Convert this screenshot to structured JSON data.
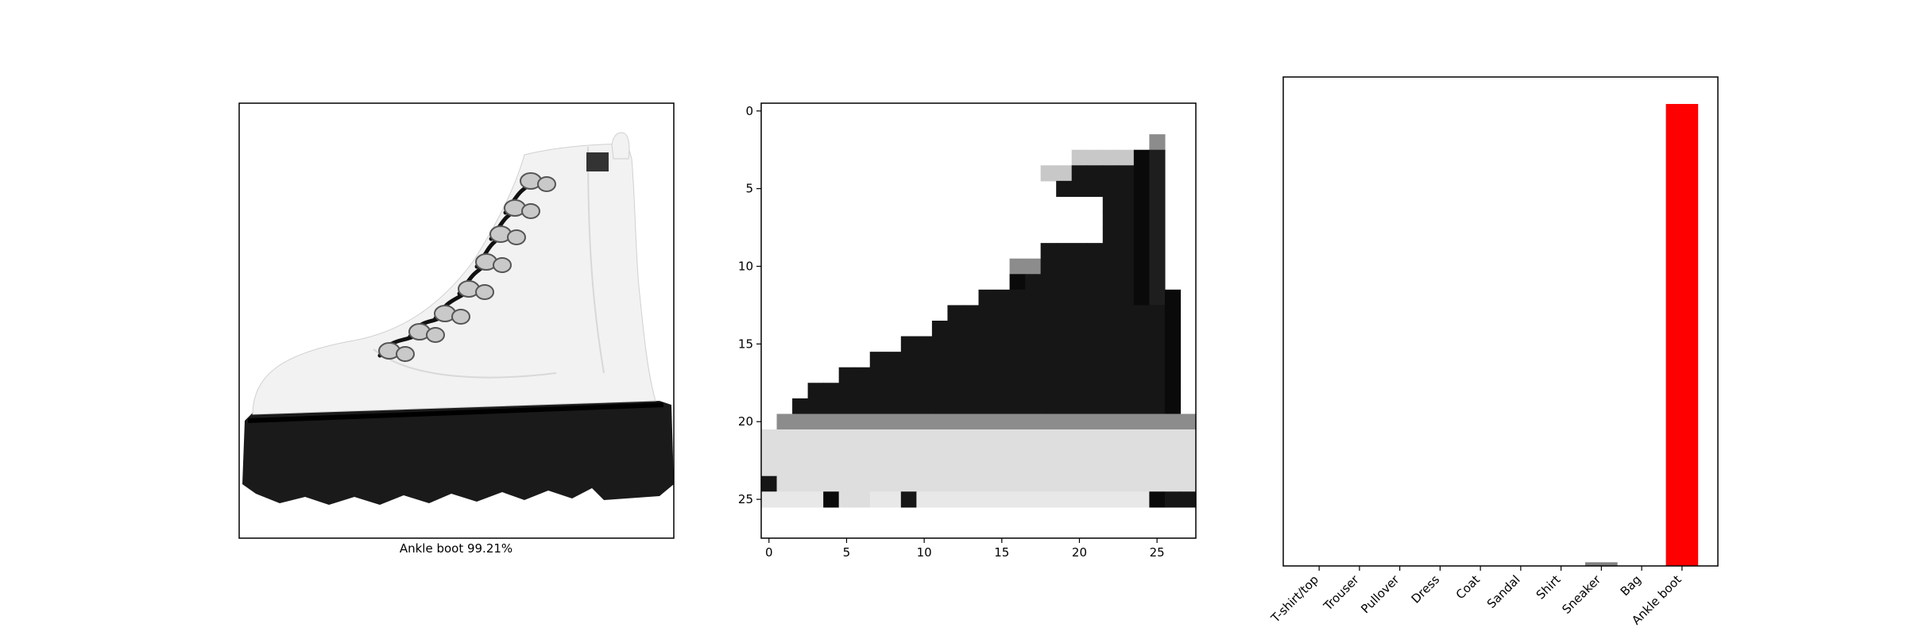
{
  "figure": {
    "prediction_caption": "Ankle boot 99.21%"
  },
  "colors": {
    "predicted_bar": "#ff0000",
    "other_bar": "#808080",
    "boot_upper": "#f2f2f2",
    "boot_sole": "#1a1a1a",
    "laces": "#111111",
    "eyelets": "#c9c9c9"
  },
  "chart_data": [
    {
      "type": "image",
      "panel": "input-photo",
      "xlabel": "Ankle boot 99.21%",
      "axes": false
    },
    {
      "type": "heatmap",
      "panel": "input-28x28",
      "colormap": "gray_r",
      "xticks": [
        0,
        5,
        10,
        15,
        20,
        25
      ],
      "yticks": [
        0,
        5,
        10,
        15,
        20,
        25
      ],
      "xlim": [
        -0.5,
        27.5
      ],
      "ylim": [
        27.5,
        -0.5
      ],
      "rows": [
        "0000000000000000000000000000",
        "0000000000000000000000000000",
        "0000000000000000000000000700",
        "000000000000000000004444a800",
        "000000000000000000449999a800",
        "000000000000000000099999a800",
        "000000000000000000000099a800",
        "000000000000000000000099a800",
        "000000000000000000000099a800",
        "000000000000000000999999a800",
        "000000000000000077999999a800",
        "0000000000000000a9999999a800",
        "000000000000009999999999a8a0",
        "00000000000099999999999999a0",
        "00000000000999999999999999a0",
        "00000000099999999999999999a0",
        "00000009999999999999999999a0",
        "00000999999999999999999999a0",
        "00099999999999999999999999a0",
        "00999999999999999999999999a0",
        "0777777777777777777777777777",
        "2222222222222222222222222222",
        "2222222222222222222222222222",
        "2222222222222222222222222222",
        "9222222222222222222222222222",
        "1111a22119111111111111111a99",
        "0000000000000000000000000000",
        "0000000000000000000000000000"
      ]
    },
    {
      "type": "bar",
      "panel": "class-probabilities",
      "categories": [
        "T-shirt/top",
        "Trouser",
        "Pullover",
        "Dress",
        "Coat",
        "Sandal",
        "Shirt",
        "Sneaker",
        "Bag",
        "Ankle boot"
      ],
      "values": [
        0.0,
        0.0,
        0.0,
        0.0,
        0.0,
        0.0,
        0.0,
        0.0079,
        0.0,
        0.9921
      ],
      "highlight_index": 9,
      "ylim": [
        0,
        1
      ],
      "yticks": false
    }
  ]
}
